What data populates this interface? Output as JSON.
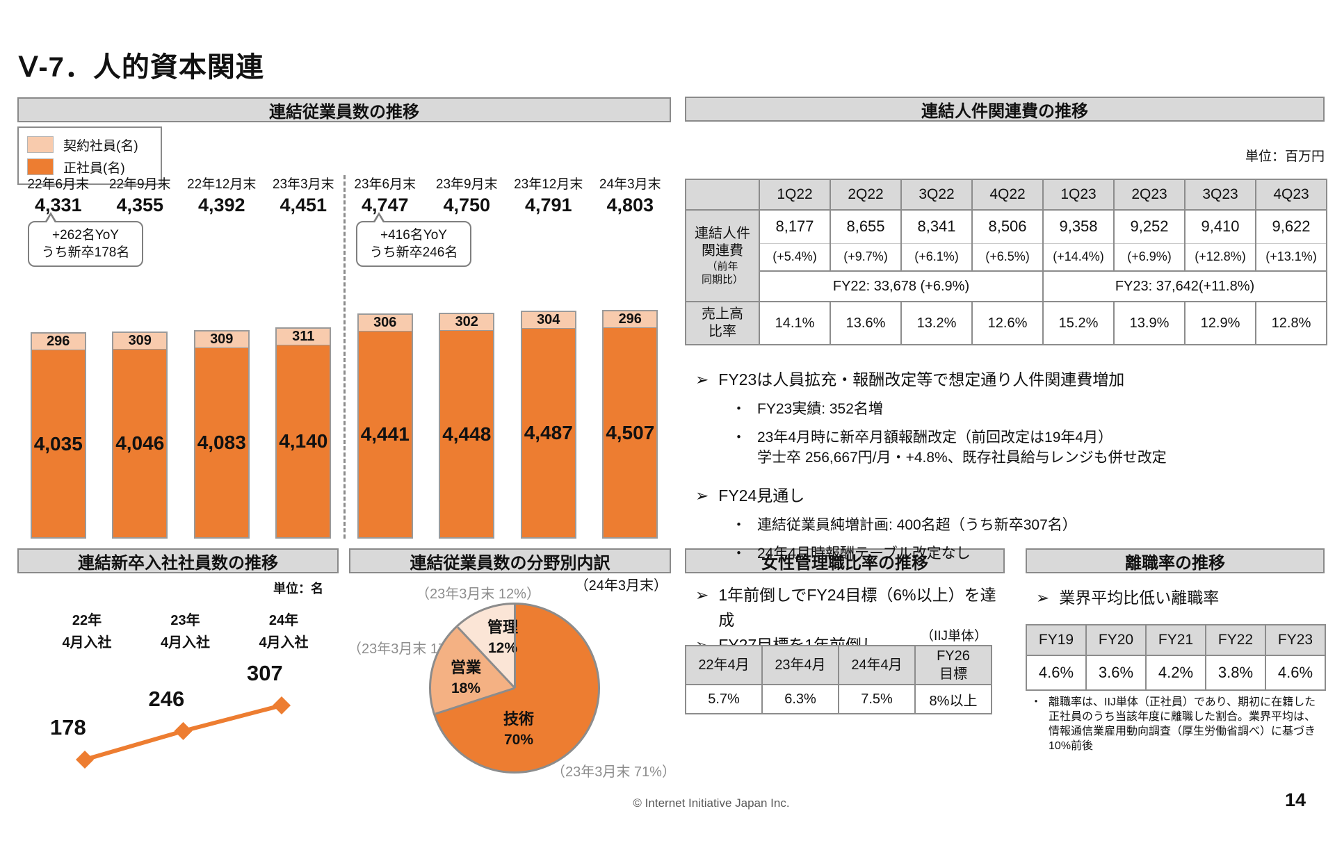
{
  "page": {
    "title": "Ⅴ-7．人的資本関連",
    "footer": "© Internet Initiative Japan Inc.",
    "page_number": "14"
  },
  "markers": {
    "arrow": "➢",
    "dot": "・"
  },
  "colors": {
    "orange": "#ED7D31",
    "light_orange": "#F8CBAD",
    "mid_orange": "#F4B183",
    "pale_orange": "#FBE5D6",
    "header_bg": "#D9D9D9",
    "note_gray": "#8C8C8C"
  },
  "employees": {
    "title": "連結従業員数の推移",
    "legend": [
      {
        "label": "契約社員(名)",
        "color": "#F8CBAD"
      },
      {
        "label": "正社員(名)",
        "color": "#ED7D31"
      }
    ],
    "callouts": [
      {
        "lines": [
          "+262名YoY",
          "うち新卒178名"
        ]
      },
      {
        "lines": [
          "+416名YoY",
          "うち新卒246名"
        ]
      }
    ],
    "chart_data": {
      "type": "bar",
      "stacked": true,
      "categories": [
        "22年6月末",
        "22年9月末",
        "22年12月末",
        "23年3月末",
        "23年6月末",
        "23年9月末",
        "23年12月末",
        "24年3月末"
      ],
      "series": [
        {
          "name": "正社員(名)",
          "values": [
            4035,
            4046,
            4083,
            4140,
            4441,
            4448,
            4487,
            4507
          ],
          "labels": [
            "4,035",
            "4,046",
            "4,083",
            "4,140",
            "4,441",
            "4,448",
            "4,487",
            "4,507"
          ],
          "color": "#ED7D31"
        },
        {
          "name": "契約社員(名)",
          "values": [
            296,
            309,
            309,
            311,
            306,
            302,
            304,
            296
          ],
          "labels": [
            "296",
            "309",
            "309",
            "311",
            "306",
            "302",
            "304",
            "296"
          ],
          "color": "#F8CBAD"
        }
      ],
      "totals": [
        4331,
        4355,
        4392,
        4451,
        4747,
        4750,
        4791,
        4803
      ],
      "total_labels": [
        "4,331",
        "4,355",
        "4,392",
        "4,451",
        "4,747",
        "4,750",
        "4,791",
        "4,803"
      ],
      "divider_after_index": 3
    }
  },
  "personnel_cost": {
    "title": "連結人件関連費の推移",
    "unit": "単位：百万円",
    "table": {
      "quarters": [
        "1Q22",
        "2Q22",
        "3Q22",
        "4Q22",
        "1Q23",
        "2Q23",
        "3Q23",
        "4Q23"
      ],
      "row_label_lines": [
        "連結人件",
        "関連費"
      ],
      "row_label_sub_lines": [
        "（前年",
        "同期比）"
      ],
      "values": [
        "8,177",
        "8,655",
        "8,341",
        "8,506",
        "9,358",
        "9,252",
        "9,410",
        "9,622"
      ],
      "yoy": [
        "(+5.4%)",
        "(+9.7%)",
        "(+6.1%)",
        "(+6.5%)",
        "(+14.4%)",
        "(+6.9%)",
        "(+12.8%)",
        "(+13.1%)"
      ],
      "fy_summaries": [
        "FY22: 33,678 (+6.9%)",
        "FY23: 37,642(+11.8%)"
      ],
      "sales_ratio_label_lines": [
        "売上高",
        "比率"
      ],
      "sales_ratio": [
        "14.1%",
        "13.6%",
        "13.2%",
        "12.6%",
        "15.2%",
        "13.9%",
        "12.9%",
        "12.8%"
      ]
    },
    "notes": [
      {
        "level": 1,
        "text": "FY23は人員拡充・報酬改定等で想定通り人件関連費増加"
      },
      {
        "level": 2,
        "text": "FY23実績: 352名増"
      },
      {
        "level": 2,
        "text": "23年4月時に新卒月額報酬改定（前回改定は19年4月）",
        "text2": "学士卒 256,667円/月・+4.8%、既存社員給与レンジも併せ改定"
      },
      {
        "level": 1,
        "text": "FY24見通し"
      },
      {
        "level": 2,
        "text": "連結従業員純増計画: 400名超（うち新卒307名）"
      },
      {
        "level": 2,
        "text": "24年4月時報酬テーブル改定なし"
      }
    ]
  },
  "grad_hires": {
    "title": "連結新卒入社社員数の推移",
    "unit": "単位：名",
    "chart_data": {
      "type": "line",
      "categories": [
        [
          "22年",
          "4月入社"
        ],
        [
          "23年",
          "4月入社"
        ],
        [
          "24年",
          "4月入社"
        ]
      ],
      "values": [
        178,
        246,
        307
      ],
      "labels": [
        "178",
        "246",
        "307"
      ],
      "line_color": "#ED7D31",
      "marker": "diamond"
    }
  },
  "field_breakdown": {
    "title": "連結従業員数の分野別内訳",
    "as_of": "（24年3月末）",
    "chart_data": {
      "type": "pie",
      "start_angle_deg": 0,
      "direction": "clockwise",
      "slices": [
        {
          "label": "技術",
          "pct": 70,
          "pct_label": "70%",
          "prev": "（23年3月末 71%）",
          "color": "#ED7D31"
        },
        {
          "label": "営業",
          "pct": 18,
          "pct_label": "18%",
          "prev": "（23年3月末 17%）",
          "color": "#F4B183"
        },
        {
          "label": "管理",
          "pct": 12,
          "pct_label": "12%",
          "prev": "（23年3月末 12%）",
          "color": "#FBE5D6"
        }
      ]
    }
  },
  "female_managers": {
    "title": "女性管理職比率の推移",
    "bullets": [
      "1年前倒しでFY24目標（6%以上）を達成",
      "FY27目標を1年前倒し"
    ],
    "scope_note": "（IIJ単体）",
    "table": {
      "headers": [
        {
          "lines": [
            "22年4月"
          ]
        },
        {
          "lines": [
            "23年4月"
          ]
        },
        {
          "lines": [
            "24年4月"
          ]
        },
        {
          "lines": [
            "FY26",
            "目標"
          ]
        }
      ],
      "values": [
        "5.7%",
        "6.3%",
        "7.5%",
        "8%以上"
      ]
    }
  },
  "turnover": {
    "title": "離職率の推移",
    "bullet": "業界平均比低い離職率",
    "table": {
      "headers": [
        "FY19",
        "FY20",
        "FY21",
        "FY22",
        "FY23"
      ],
      "values": [
        "4.6%",
        "3.6%",
        "4.2%",
        "3.8%",
        "4.6%"
      ]
    },
    "note": "離職率は、IIJ単体（正社員）であり、期初に在籍した正社員のうち当該年度に離職した割合。業界平均は、情報通信業雇用動向調査（厚生労働省調べ）に基づき10%前後"
  }
}
